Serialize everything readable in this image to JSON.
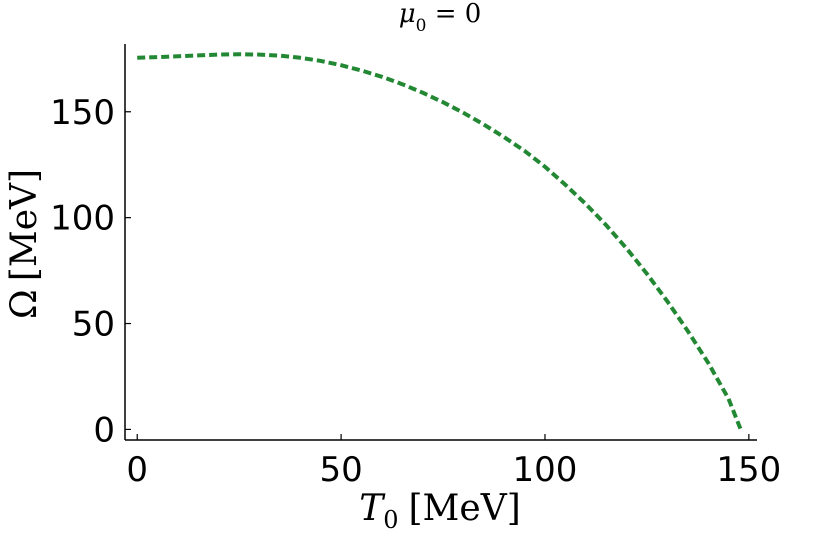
{
  "chart_data": {
    "type": "line",
    "title": {
      "var": "μ",
      "sub": "0",
      "rest": " = 0"
    },
    "xlabel": {
      "var": "T",
      "sub": "0",
      "unit": "[MeV]"
    },
    "ylabel": {
      "var": "Ω",
      "unit": "[MeV]"
    },
    "xlim": [
      -3,
      152
    ],
    "ylim": [
      -5,
      182
    ],
    "xticks": [
      0,
      50,
      100,
      150
    ],
    "yticks": [
      0,
      50,
      100,
      150
    ],
    "grid": false,
    "series": [
      {
        "color": "#228833",
        "line_style": "dashed",
        "x": [
          0,
          5,
          10,
          15,
          20,
          25,
          30,
          35,
          40,
          45,
          50,
          55,
          60,
          65,
          70,
          75,
          80,
          85,
          90,
          95,
          100,
          105,
          110,
          115,
          120,
          125,
          130,
          135,
          140,
          145,
          148
        ],
        "y": [
          175.5,
          175.8,
          176.2,
          176.6,
          177.0,
          177.2,
          177.0,
          176.5,
          175.5,
          174.0,
          172.0,
          169.5,
          166.5,
          163.0,
          159.0,
          154.5,
          149.5,
          144.0,
          138.0,
          131.5,
          124.0,
          115.5,
          106.5,
          96.5,
          85.5,
          73.5,
          60.5,
          46.5,
          31.5,
          14.5,
          0.0
        ]
      }
    ]
  }
}
